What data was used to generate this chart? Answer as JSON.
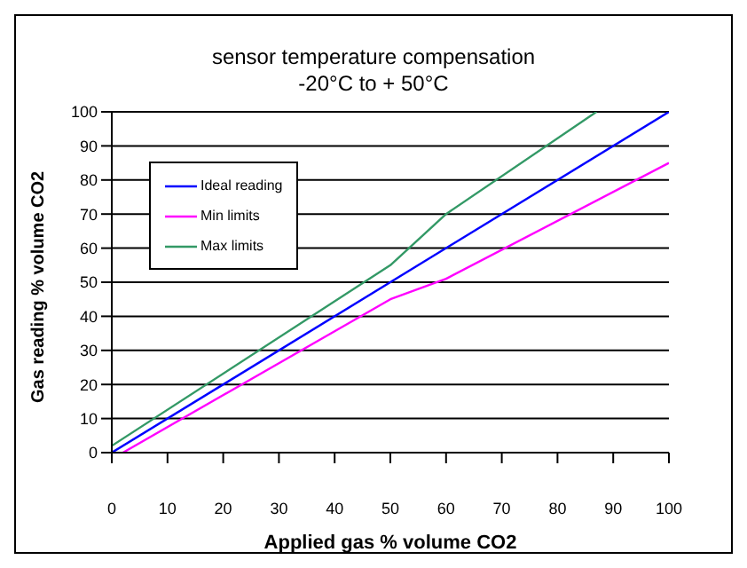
{
  "chart_data": {
    "type": "line",
    "title": "sensor temperature compensation",
    "subtitle": "-20°C to + 50°C",
    "xlabel": "Applied gas % volume CO2",
    "ylabel": "Gas reading % volume CO2",
    "xlim": [
      0,
      100
    ],
    "xticks": [
      0,
      10,
      20,
      30,
      40,
      50,
      60,
      70,
      80,
      90,
      100
    ],
    "ylim": [
      0,
      100
    ],
    "yticks": [
      0,
      10,
      20,
      30,
      40,
      50,
      60,
      70,
      80,
      90,
      100
    ],
    "grid": "y",
    "legend": "top left",
    "marker": "none",
    "line_style": "solid",
    "series": [
      {
        "name": "Ideal reading",
        "color": "#0000ff",
        "x": [
          0,
          100
        ],
        "values": [
          0,
          100
        ]
      },
      {
        "name": "Min limits",
        "color": "#ff00ff",
        "x": [
          2,
          50,
          60,
          100
        ],
        "values": [
          0,
          45,
          51,
          85
        ]
      },
      {
        "name": "Max limits",
        "color": "#339966",
        "x": [
          0,
          50,
          60,
          87
        ],
        "values": [
          2,
          55,
          70,
          100
        ]
      }
    ]
  }
}
